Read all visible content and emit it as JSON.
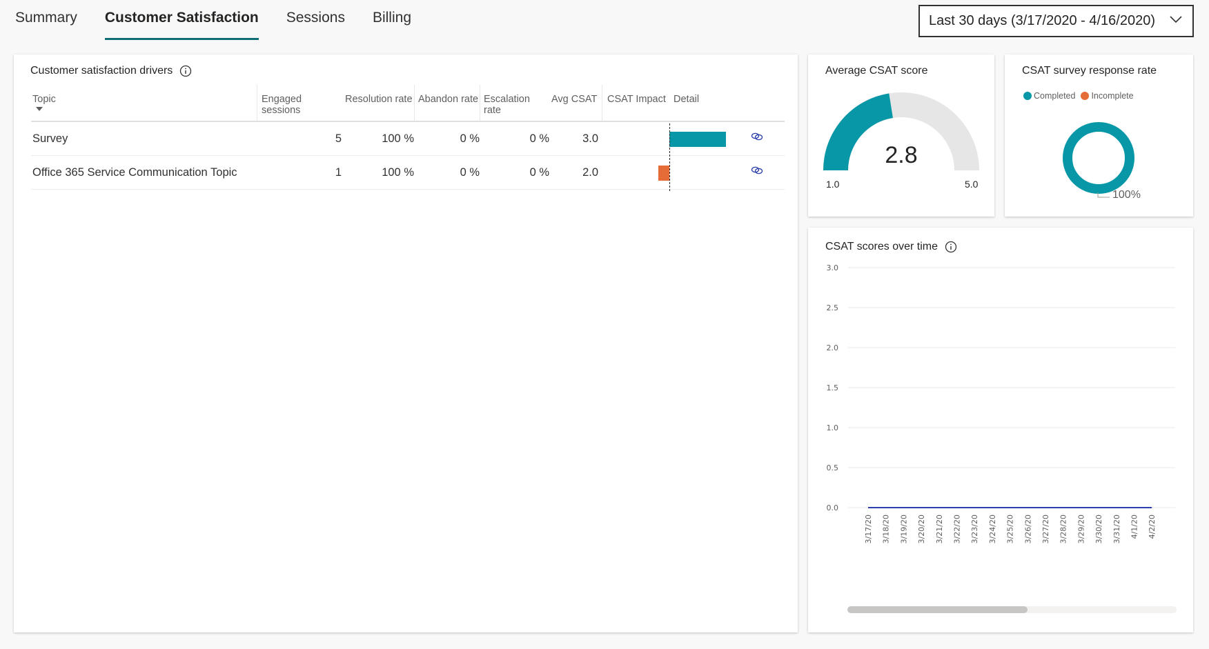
{
  "tabs": [
    {
      "label": "Summary"
    },
    {
      "label": "Customer Satisfaction"
    },
    {
      "label": "Sessions"
    },
    {
      "label": "Billing"
    }
  ],
  "date_range": {
    "label": "Last 30 days (3/17/2020 - 4/16/2020)"
  },
  "drivers": {
    "title": "Customer satisfaction drivers",
    "columns": [
      "Topic",
      "Engaged sessions",
      "Resolution rate",
      "Abandon rate",
      "Escalation rate",
      "Avg CSAT",
      "CSAT Impact",
      "Detail"
    ],
    "rows": [
      {
        "topic": "Survey",
        "engaged": "5",
        "resolution": "100 %",
        "abandon": "0 %",
        "escalation": "0 %",
        "avg_csat": "3.0",
        "impact": 0.2
      },
      {
        "topic": "Office 365 Service Communication Topic",
        "engaged": "1",
        "resolution": "100 %",
        "abandon": "0 %",
        "escalation": "0 %",
        "avg_csat": "2.0",
        "impact": -0.04
      }
    ],
    "colors": {
      "positive": "#0797a7",
      "negative": "#e66c37"
    }
  },
  "avg_csat": {
    "title": "Average CSAT score",
    "value": "2.8",
    "min": "1.0",
    "max": "5.0",
    "fraction": 0.45,
    "color": "#0797a7"
  },
  "response_rate": {
    "title": "CSAT survey response rate",
    "legend": [
      {
        "label": "Completed",
        "color": "#0797a7"
      },
      {
        "label": "Incomplete",
        "color": "#e66c37"
      }
    ],
    "value_label": "100%"
  },
  "chart_data": {
    "type": "line",
    "title": "CSAT scores over time",
    "x": [
      "3/17/20",
      "3/18/20",
      "3/19/20",
      "3/20/20",
      "3/21/20",
      "3/22/20",
      "3/23/20",
      "3/24/20",
      "3/25/20",
      "3/26/20",
      "3/27/20",
      "3/28/20",
      "3/29/20",
      "3/30/20",
      "3/31/20",
      "4/1/20",
      "4/2/20"
    ],
    "series": [
      {
        "values": [
          0,
          0,
          0,
          0,
          0,
          0,
          0,
          0,
          0,
          0,
          0,
          0,
          0,
          0,
          0,
          0,
          0
        ],
        "color": "#2b3dac"
      }
    ],
    "y_ticks": [
      "0.0",
      "0.5",
      "1.0",
      "1.5",
      "2.0",
      "2.5",
      "3.0"
    ],
    "ylim": [
      0,
      3
    ],
    "grid": true
  }
}
